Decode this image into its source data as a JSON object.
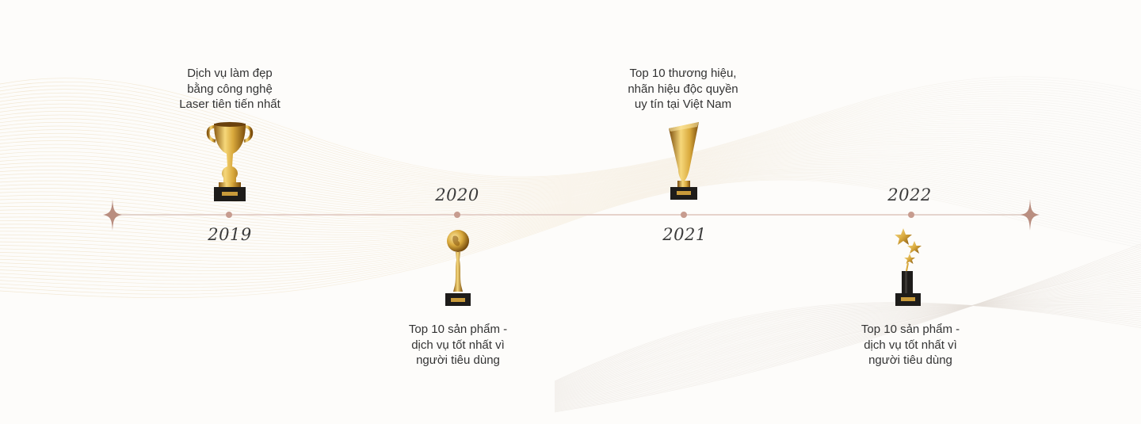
{
  "timeline": {
    "items": [
      {
        "year": "2019",
        "description": "Dịch vụ làm đẹp\nbằng công nghệ\nLaser tiên tiến nhất",
        "trophy": "cup-trophy-icon"
      },
      {
        "year": "2020",
        "description": "Top 10 sản phẩm -\ndịch vụ tốt nhất vì\nngười tiêu dùng",
        "trophy": "globe-trophy-icon"
      },
      {
        "year": "2021",
        "description": "Top 10 thương hiệu,\nnhãn hiệu độc quyền\nuy tín tại Việt Nam",
        "trophy": "cone-trophy-icon"
      },
      {
        "year": "2022",
        "description": "Top 10 sản phẩm -\ndịch vụ tốt nhất vì\nngười tiêu dùng",
        "trophy": "stars-trophy-icon"
      }
    ]
  },
  "colors": {
    "dot": "#c79c8f",
    "gold": "#d9a93c",
    "background": "#fdfcfa"
  }
}
